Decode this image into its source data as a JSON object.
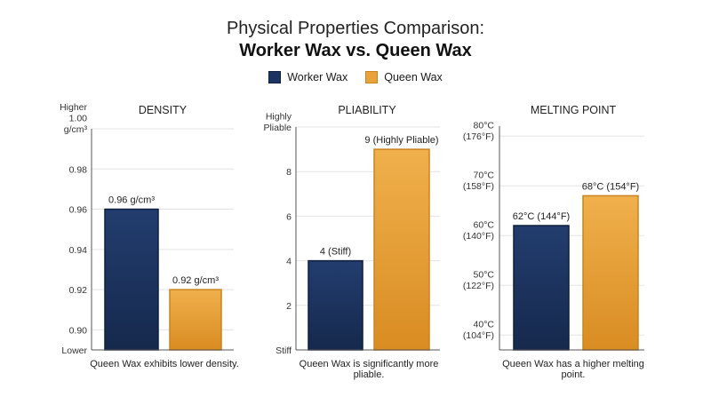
{
  "title_line1": "Physical Properties Comparison:",
  "title_line2": "Worker Wax vs. Queen Wax",
  "colors": {
    "worker": "#1c3461",
    "worker_edge": "#0f1f3d",
    "queen": "#eaa33a",
    "queen_edge": "#c98420"
  },
  "legend": [
    {
      "name": "Worker Wax",
      "color_key": "worker"
    },
    {
      "name": "Queen Wax",
      "color_key": "queen"
    }
  ],
  "chart_data": [
    {
      "type": "bar",
      "title": "DENSITY",
      "categories": [
        "Worker Wax",
        "Queen Wax"
      ],
      "values": [
        0.96,
        0.92
      ],
      "data_labels": [
        "0.96 g/cm³",
        "0.92 g/cm³"
      ],
      "ylim": [
        0.89,
        1.0
      ],
      "ticks": [
        {
          "value": 1.0,
          "label": [
            "Higher",
            "1.00",
            "g/cm³"
          ]
        },
        {
          "value": 0.98,
          "label": [
            "0.98"
          ]
        },
        {
          "value": 0.96,
          "label": [
            "0.96"
          ]
        },
        {
          "value": 0.94,
          "label": [
            "0.94"
          ]
        },
        {
          "value": 0.92,
          "label": [
            "0.92"
          ]
        },
        {
          "value": 0.9,
          "label": [
            "0.90"
          ]
        },
        {
          "value": 0.89,
          "label": [
            "Lower"
          ]
        }
      ],
      "caption": "Queen Wax exhibits lower density."
    },
    {
      "type": "bar",
      "title": "PLIABILITY",
      "categories": [
        "Worker Wax",
        "Queen Wax"
      ],
      "values": [
        4,
        9
      ],
      "data_labels": [
        "4 (Stiff)",
        "9 (Highly Pliable)"
      ],
      "ylim": [
        0,
        10
      ],
      "ticks": [
        {
          "value": 10,
          "label": [
            "Highly",
            "Pliable"
          ]
        },
        {
          "value": 8,
          "label": [
            "8"
          ]
        },
        {
          "value": 6,
          "label": [
            "6"
          ]
        },
        {
          "value": 4,
          "label": [
            "4"
          ]
        },
        {
          "value": 2,
          "label": [
            "2"
          ]
        },
        {
          "value": 0,
          "label": [
            "Stiff"
          ]
        }
      ],
      "caption": "Queen Wax is significantly more pliable."
    },
    {
      "type": "bar",
      "title": "MELTING POINT",
      "categories": [
        "Worker Wax",
        "Queen Wax"
      ],
      "values": [
        62,
        68
      ],
      "data_labels": [
        "62°C (144°F)",
        "68°C (154°F)"
      ],
      "ylim": [
        37,
        82
      ],
      "ticks": [
        {
          "value": 80,
          "label": [
            "80°C",
            "(176°F)"
          ]
        },
        {
          "value": 70,
          "label": [
            "70°C",
            "(158°F)"
          ]
        },
        {
          "value": 60,
          "label": [
            "60°C",
            "(140°F)"
          ]
        },
        {
          "value": 50,
          "label": [
            "50°C",
            "(122°F)"
          ]
        },
        {
          "value": 40,
          "label": [
            "40°C",
            "(104°F)"
          ]
        }
      ],
      "caption": "Queen Wax has a higher melting point."
    }
  ]
}
